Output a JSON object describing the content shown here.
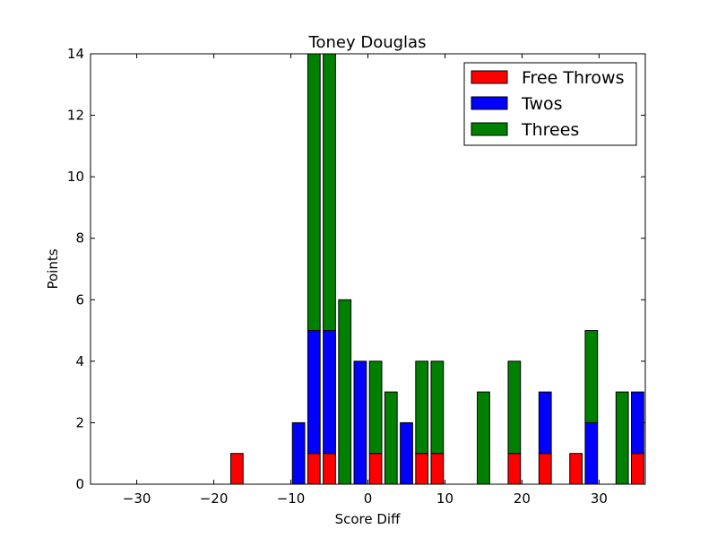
{
  "chart_data": {
    "type": "bar",
    "stacked": true,
    "title": "Toney Douglas",
    "xlabel": "Score Diff",
    "ylabel": "Points",
    "xlim": [
      -36,
      36
    ],
    "ylim": [
      0,
      14
    ],
    "xticks": [
      -30,
      -20,
      -10,
      0,
      10,
      20,
      30
    ],
    "yticks": [
      0,
      2,
      4,
      6,
      8,
      10,
      12,
      14
    ],
    "bar_width": 1.6,
    "legend_position": "top-right",
    "x": [
      -35,
      -33,
      -31,
      -29,
      -27,
      -25,
      -23,
      -21,
      -19,
      -17,
      -15,
      -13,
      -11,
      -9,
      -7,
      -5,
      -3,
      -1,
      1,
      3,
      5,
      7,
      9,
      11,
      13,
      15,
      17,
      19,
      21,
      23,
      25,
      27,
      29,
      31,
      33,
      35
    ],
    "series": [
      {
        "name": "Free Throws",
        "color": "#ff0000",
        "values": [
          0,
          0,
          0,
          0,
          0,
          0,
          0,
          0,
          0,
          1,
          0,
          0,
          0,
          0,
          1,
          1,
          0,
          0,
          1,
          0,
          0,
          1,
          1,
          0,
          0,
          0,
          0,
          1,
          0,
          1,
          0,
          1,
          0,
          0,
          0,
          1
        ]
      },
      {
        "name": "Twos",
        "color": "#0000ff",
        "values": [
          0,
          0,
          0,
          0,
          0,
          0,
          0,
          0,
          0,
          0,
          0,
          0,
          0,
          2,
          4,
          4,
          0,
          4,
          0,
          0,
          2,
          0,
          0,
          0,
          0,
          0,
          0,
          0,
          0,
          2,
          0,
          0,
          2,
          0,
          0,
          2
        ]
      },
      {
        "name": "Threes",
        "color": "#008000",
        "values": [
          0,
          0,
          0,
          0,
          0,
          0,
          0,
          0,
          0,
          0,
          0,
          0,
          0,
          0,
          9,
          9,
          6,
          0,
          3,
          3,
          0,
          3,
          3,
          0,
          0,
          3,
          0,
          3,
          0,
          0,
          0,
          0,
          3,
          0,
          3,
          0
        ]
      }
    ]
  }
}
